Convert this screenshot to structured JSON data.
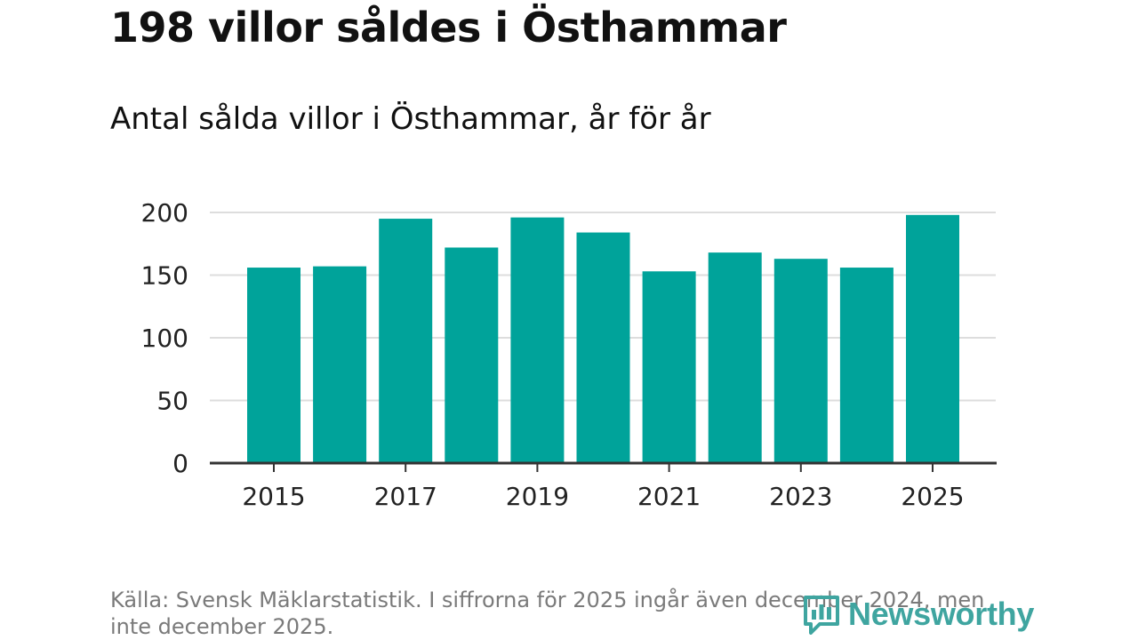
{
  "title": "198 villor såldes i Östhammar",
  "subtitle": "Antal sålda villor i Östhammar, år för år",
  "source": "Källa: Svensk Mäklarstatistik. I siffrorna för 2025 ingår även december 2024, men inte december 2025.",
  "brand": "Newsworthy",
  "colors": {
    "bar": "#00a39a",
    "grid": "#dddddd",
    "axis": "#333333",
    "brand": "#3fa5a0"
  },
  "chart_data": {
    "type": "bar",
    "title": "Antal sålda villor i Östhammar, år för år",
    "xlabel": "",
    "ylabel": "",
    "categories": [
      "2015",
      "2016",
      "2017",
      "2018",
      "2019",
      "2020",
      "2021",
      "2022",
      "2023",
      "2024",
      "2025"
    ],
    "values": [
      156,
      157,
      195,
      172,
      196,
      184,
      153,
      168,
      163,
      156,
      198
    ],
    "x_tick_labels": [
      "2015",
      "2017",
      "2019",
      "2021",
      "2023",
      "2025"
    ],
    "y_ticks": [
      0,
      50,
      100,
      150,
      200
    ],
    "ylim": [
      0,
      200
    ],
    "grid": true
  }
}
